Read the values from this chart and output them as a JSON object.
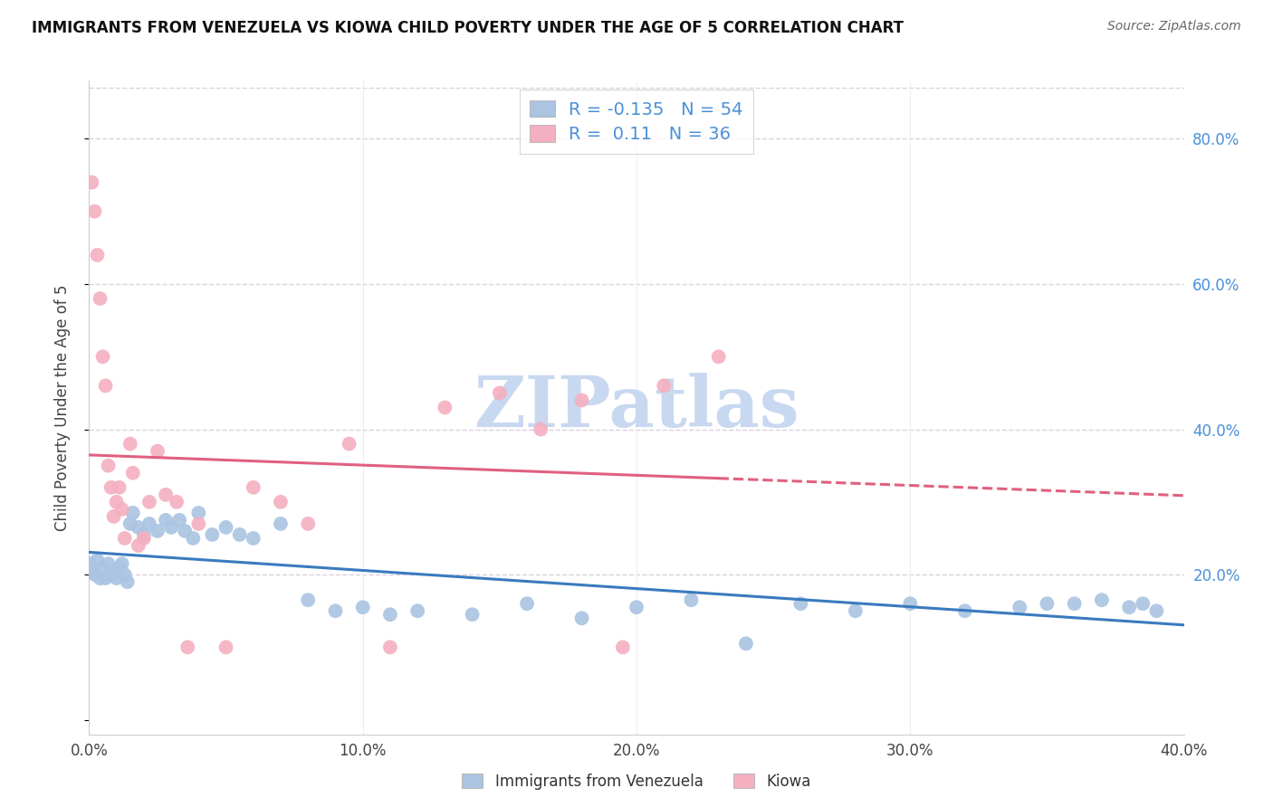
{
  "title": "IMMIGRANTS FROM VENEZUELA VS KIOWA CHILD POVERTY UNDER THE AGE OF 5 CORRELATION CHART",
  "source": "Source: ZipAtlas.com",
  "ylabel": "Child Poverty Under the Age of 5",
  "xlim": [
    0.0,
    0.4
  ],
  "ylim": [
    -0.02,
    0.88
  ],
  "xticks": [
    0.0,
    0.1,
    0.2,
    0.3,
    0.4
  ],
  "yticks_right": [
    0.2,
    0.4,
    0.6,
    0.8
  ],
  "blue_R": -0.135,
  "blue_N": 54,
  "pink_R": 0.11,
  "pink_N": 36,
  "blue_color": "#aac4e2",
  "pink_color": "#f4afc0",
  "blue_line_color": "#3a7abf",
  "pink_line_color": "#e06080",
  "right_axis_color": "#4a90d9",
  "watermark": "ZIPatlas",
  "watermark_color": "#c8d8f0",
  "grid_color": "#ddd0dc",
  "blue_scatter_x": [
    0.0,
    0.001,
    0.002,
    0.003,
    0.004,
    0.005,
    0.006,
    0.007,
    0.008,
    0.009,
    0.01,
    0.011,
    0.012,
    0.013,
    0.014,
    0.015,
    0.016,
    0.018,
    0.02,
    0.022,
    0.025,
    0.028,
    0.03,
    0.033,
    0.035,
    0.038,
    0.04,
    0.045,
    0.05,
    0.055,
    0.06,
    0.07,
    0.08,
    0.09,
    0.1,
    0.11,
    0.12,
    0.14,
    0.16,
    0.18,
    0.2,
    0.22,
    0.24,
    0.26,
    0.28,
    0.3,
    0.32,
    0.34,
    0.35,
    0.36,
    0.37,
    0.38,
    0.385,
    0.39
  ],
  "blue_scatter_y": [
    0.215,
    0.205,
    0.2,
    0.22,
    0.195,
    0.21,
    0.195,
    0.215,
    0.2,
    0.205,
    0.195,
    0.21,
    0.215,
    0.2,
    0.19,
    0.27,
    0.285,
    0.265,
    0.255,
    0.27,
    0.26,
    0.275,
    0.265,
    0.275,
    0.26,
    0.25,
    0.285,
    0.255,
    0.265,
    0.255,
    0.25,
    0.27,
    0.165,
    0.15,
    0.155,
    0.145,
    0.15,
    0.145,
    0.16,
    0.14,
    0.155,
    0.165,
    0.105,
    0.16,
    0.15,
    0.16,
    0.15,
    0.155,
    0.16,
    0.16,
    0.165,
    0.155,
    0.16,
    0.15
  ],
  "pink_scatter_x": [
    0.001,
    0.002,
    0.003,
    0.004,
    0.005,
    0.006,
    0.007,
    0.008,
    0.009,
    0.01,
    0.011,
    0.012,
    0.013,
    0.015,
    0.016,
    0.018,
    0.02,
    0.022,
    0.025,
    0.028,
    0.032,
    0.036,
    0.04,
    0.05,
    0.06,
    0.07,
    0.08,
    0.095,
    0.11,
    0.13,
    0.15,
    0.165,
    0.18,
    0.195,
    0.21,
    0.23
  ],
  "pink_scatter_y": [
    0.74,
    0.7,
    0.64,
    0.58,
    0.5,
    0.46,
    0.35,
    0.32,
    0.28,
    0.3,
    0.32,
    0.29,
    0.25,
    0.38,
    0.34,
    0.24,
    0.25,
    0.3,
    0.37,
    0.31,
    0.3,
    0.1,
    0.27,
    0.1,
    0.32,
    0.3,
    0.27,
    0.38,
    0.1,
    0.43,
    0.45,
    0.4,
    0.44,
    0.1,
    0.46,
    0.5
  ]
}
